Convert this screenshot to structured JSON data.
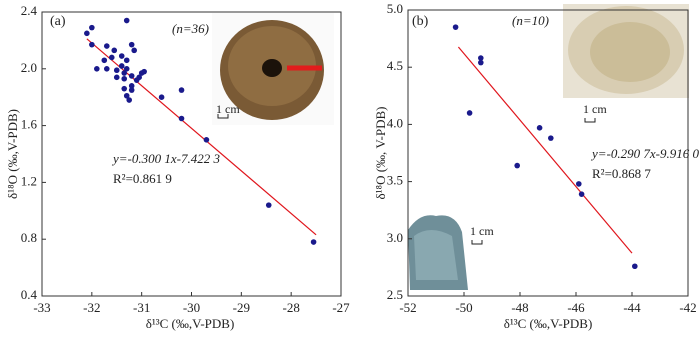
{
  "chart_data": [
    {
      "type": "scatter",
      "color": "#1a1a8c",
      "panel_label": "(a)",
      "n_label": "(n=36)",
      "equation": "y=-0.300 1x-7.422 3",
      "r_squared": "R²=0.861 9",
      "scale_labels": [
        "1 cm"
      ],
      "xlabel": "δ¹³C (‰,V-PDB)",
      "ylabel": "δ¹⁸O (‰,V-PDB)",
      "xlim": [
        -33,
        -27
      ],
      "xticks": [
        -33,
        -32,
        -31,
        -30,
        -29,
        -28,
        -27
      ],
      "ylim": [
        0.4,
        2.4
      ],
      "yticks": [
        0.4,
        0.8,
        1.2,
        1.6,
        {
          "value": 2,
          "label": "2.0"
        },
        2.4
      ],
      "x": [
        -32.0,
        -32.1,
        -32.0,
        -31.7,
        -31.55,
        -31.3,
        -31.2,
        -31.15,
        -31.4,
        -31.3,
        -31.9,
        -31.7,
        -31.5,
        -31.4,
        -31.35,
        -31.3,
        -31.5,
        -31.35,
        -31.2,
        -31.0,
        -30.95,
        -31.2,
        -31.35,
        -31.2,
        -31.3,
        -31.25,
        -31.1,
        -31.05,
        -31.6,
        -31.75,
        -30.6,
        -30.2,
        -30.2,
        -29.7,
        -28.45,
        -27.55
      ],
      "values": [
        2.29,
        2.25,
        2.17,
        2.16,
        2.13,
        2.34,
        2.17,
        2.13,
        2.09,
        2.06,
        2.0,
        2.0,
        1.99,
        2.02,
        1.97,
        2.0,
        1.94,
        1.93,
        1.95,
        1.97,
        1.98,
        1.88,
        1.86,
        1.85,
        1.81,
        1.78,
        1.92,
        1.94,
        2.08,
        2.06,
        1.8,
        1.85,
        1.65,
        1.5,
        1.04,
        0.78
      ],
      "fit": {
        "x": [
          -32.1,
          -27.5
        ],
        "values": [
          2.211,
          0.831
        ],
        "color": "#e0161d"
      }
    },
    {
      "type": "scatter",
      "color": "#1a1a8c",
      "panel_label": "(b)",
      "n_label": "(n=10)",
      "equation": "y=-0.290 7x-9.916 0",
      "r_squared": "R²=0.868 7",
      "scale_labels": [
        "1 cm",
        "1 cm"
      ],
      "xlabel": "δ¹³C (‰,V-PDB)",
      "ylabel": "δ¹⁸O (‰, V-PDB)",
      "xlim": [
        -52,
        -42
      ],
      "xticks": [
        -52,
        -50,
        -48,
        -46,
        -44,
        -42
      ],
      "ylim": [
        2.5,
        5
      ],
      "yticks": [
        2.5,
        {
          "value": 3,
          "label": "3.0"
        },
        3.5,
        {
          "value": 4,
          "label": "4.0"
        },
        4.5,
        {
          "value": 5,
          "label": "5.0"
        }
      ],
      "x": [
        -50.3,
        -49.4,
        -49.4,
        -49.8,
        -47.3,
        -46.9,
        -48.1,
        -45.9,
        -45.8,
        -43.9
      ],
      "values": [
        4.85,
        4.58,
        4.54,
        4.1,
        3.97,
        3.88,
        3.64,
        3.48,
        3.39,
        2.76
      ],
      "fit": {
        "x": [
          -50.2,
          -44
        ],
        "values": [
          4.677,
          2.875
        ],
        "color": "#e0161d"
      }
    }
  ]
}
